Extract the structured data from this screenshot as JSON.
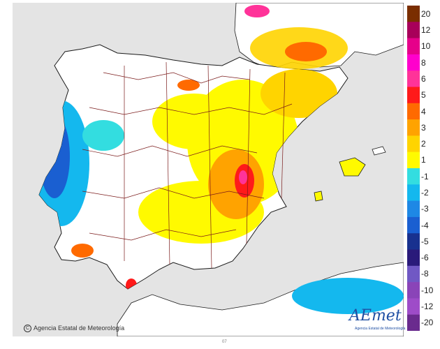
{
  "title": "",
  "colors": {
    "sea": "#e4e4e4",
    "land_neutral": "#ffffff",
    "border": "#7a1a1a",
    "coast": "#1a1a1a",
    "pos_1": "#fffa00",
    "pos_2": "#ffd400",
    "pos_3": "#ffa300",
    "pos_4": "#ff6a00",
    "pos_5": "#ff1a1a",
    "pos_6": "#ff3399",
    "pos_8": "#ff00cc",
    "pos_10": "#e6008a",
    "pos_12": "#a8005a",
    "pos_20": "#7a2e00",
    "neg_1": "#33dde0",
    "neg_2": "#14b8ee",
    "neg_3": "#1e88e5",
    "neg_4": "#1a5fd1",
    "neg_5": "#18318f",
    "neg_6": "#2a1a7a",
    "neg_8": "#7058c4",
    "neg_10": "#8a44b8",
    "neg_12": "#9e4cc8",
    "neg_20": "#6a2b8e"
  },
  "legend": {
    "labels": [
      "20",
      "12",
      "10",
      "8",
      "6",
      "5",
      "4",
      "3",
      "2",
      "1",
      "-1",
      "-2",
      "-3",
      "-4",
      "-5",
      "-6",
      "-8",
      "-10",
      "-12",
      "-20"
    ]
  },
  "copyright": "Agencia Estatal de Meteorología",
  "copyright_symbol": "C",
  "logo": "AEmet",
  "logo_sub": "Agencia Estatal de Meteorología",
  "bottom_note": "07"
}
